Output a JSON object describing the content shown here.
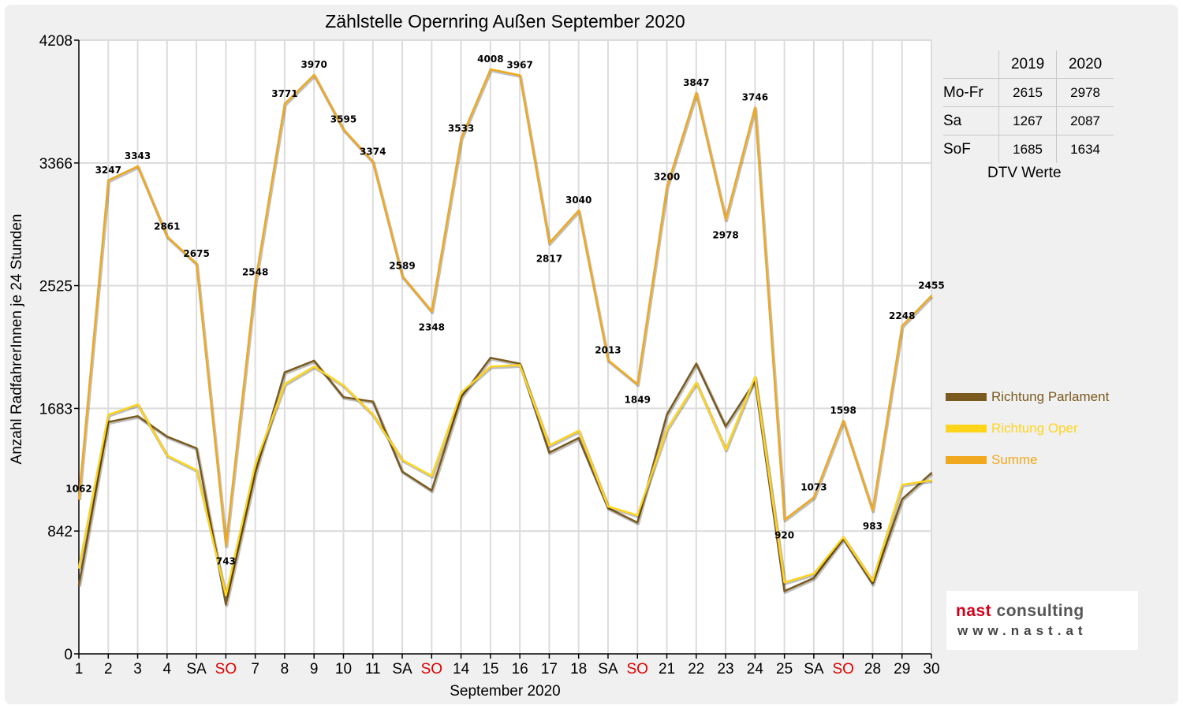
{
  "title": "Zählstelle Opernring Außen September 2020",
  "chart_data": {
    "type": "line",
    "title": "Zählstelle Opernring Außen September 2020",
    "xlabel": "September 2020",
    "ylabel": "Anzahl RadfahrerInnen je 24 Stunden",
    "ylim": [
      0,
      4208
    ],
    "yticks": [
      0,
      842,
      1683,
      2525,
      3366,
      4208
    ],
    "grid": true,
    "legend_position": "right",
    "x": [
      1,
      2,
      3,
      4,
      5,
      6,
      7,
      8,
      9,
      10,
      11,
      12,
      13,
      14,
      15,
      16,
      17,
      18,
      19,
      20,
      21,
      22,
      23,
      24,
      25,
      26,
      27,
      28,
      29,
      30
    ],
    "tick_labels": [
      "1",
      "2",
      "3",
      "4",
      "SA",
      "SO",
      "7",
      "8",
      "9",
      "10",
      "11",
      "SA",
      "SO",
      "14",
      "15",
      "16",
      "17",
      "18",
      "SA",
      "SO",
      "21",
      "22",
      "23",
      "24",
      "25",
      "SA",
      "SO",
      "28",
      "29",
      "30"
    ],
    "red_ticks": [
      "SO"
    ],
    "series": [
      {
        "name": "Richtung Parlament",
        "color": "#7a5a1e",
        "values": [
          470,
          1590,
          1630,
          1490,
          1410,
          340,
          1240,
          1930,
          2010,
          1760,
          1730,
          1250,
          1120,
          1760,
          2030,
          1990,
          1380,
          1480,
          1000,
          900,
          1640,
          1990,
          1560,
          1870,
          430,
          520,
          790,
          480,
          1060,
          1240
        ]
      },
      {
        "name": "Richtung Oper",
        "color": "#ffd51c",
        "values": [
          590,
          1640,
          1710,
          1360,
          1260,
          400,
          1300,
          1850,
          1970,
          1840,
          1640,
          1330,
          1220,
          1790,
          1970,
          1980,
          1430,
          1530,
          1010,
          950,
          1540,
          1860,
          1400,
          1900,
          490,
          550,
          800,
          500,
          1160,
          1190
        ]
      },
      {
        "name": "Summe",
        "color": "#f0a81e",
        "values": [
          1062,
          3247,
          3343,
          2861,
          2675,
          743,
          2548,
          3771,
          3970,
          3595,
          3374,
          2589,
          2348,
          3533,
          4008,
          3967,
          2817,
          3040,
          2013,
          1849,
          3200,
          3847,
          2978,
          3746,
          920,
          1073,
          1598,
          983,
          2248,
          2455
        ]
      }
    ],
    "data_labels": [
      "1062",
      "3247",
      "3343",
      "2861",
      "2675",
      "743",
      "2548",
      "3771",
      "3970",
      "3595",
      "3374",
      "2589",
      "2348",
      "3533",
      "4008",
      "3967",
      "2817",
      "3040",
      "2013",
      "1849",
      "3200",
      "3847",
      "2978",
      "3746",
      "920",
      "1073",
      "1598",
      "983",
      "2248",
      "2455"
    ]
  },
  "stats_table": {
    "headers": [
      "",
      "2019",
      "2020"
    ],
    "rows": [
      {
        "label": "Mo-Fr",
        "y2019": "2615",
        "y2020": "2978"
      },
      {
        "label": "Sa",
        "y2019": "1267",
        "y2020": "2087"
      },
      {
        "label": "SoF",
        "y2019": "1685",
        "y2020": "1634"
      }
    ],
    "caption": "DTV Werte"
  },
  "legend": [
    {
      "label": "Richtung Parlament",
      "color": "#7a5a1e"
    },
    {
      "label": "Richtung Oper",
      "color": "#ffd51c"
    },
    {
      "label": "Summe",
      "color": "#f0a81e"
    }
  ],
  "logo": {
    "part1": "nast",
    "part2": " consulting",
    "sub": "www.nast.at"
  }
}
